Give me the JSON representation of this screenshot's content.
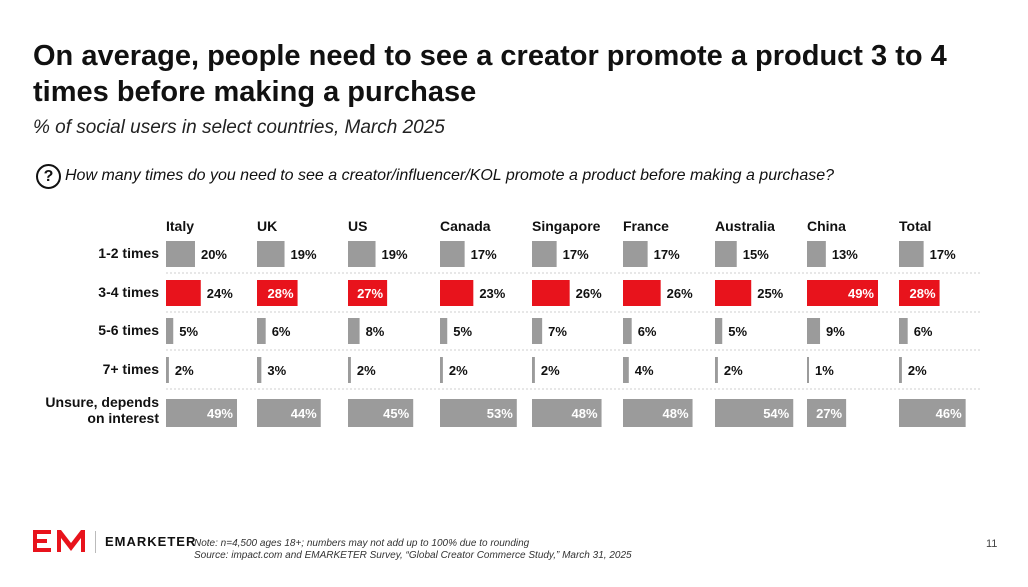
{
  "title": "On average, people need to see a creator promote a product 3 to 4 times before making a purchase",
  "subtitle": "% of social users in select countries, March 2025",
  "question": "How many times do you need to see a creator/influencer/KOL promote a product before making a purchase?",
  "question_icon": "question-circle-icon",
  "colors": {
    "highlight": "#e8131c",
    "default": "#9b9b9b",
    "label_on_bar": "#ffffff"
  },
  "chart_data": {
    "type": "bar",
    "orientation": "horizontal",
    "facet_by": "country",
    "x_max": 49,
    "countries": [
      "Italy",
      "UK",
      "US",
      "Canada",
      "Singapore",
      "France",
      "Australia",
      "China",
      "Total"
    ],
    "categories": [
      "1-2 times",
      "3-4 times",
      "5-6 times",
      "7+ times",
      "Unsure, depends on interest"
    ],
    "highlight_category": "3-4 times",
    "values": [
      [
        20,
        19,
        19,
        17,
        17,
        17,
        15,
        13,
        17
      ],
      [
        24,
        28,
        27,
        23,
        26,
        26,
        25,
        49,
        28
      ],
      [
        5,
        6,
        8,
        5,
        7,
        6,
        5,
        9,
        6
      ],
      [
        2,
        3,
        2,
        2,
        2,
        4,
        2,
        1,
        2
      ],
      [
        49,
        44,
        45,
        53,
        48,
        48,
        54,
        27,
        46
      ]
    ],
    "labels": [
      [
        "20%",
        "19%",
        "19%",
        "17%",
        "17%",
        "17%",
        "15%",
        "13%",
        "17%"
      ],
      [
        "24%",
        "28%",
        "27%",
        "23%",
        "26%",
        "26%",
        "25%",
        "49%",
        "28%"
      ],
      [
        "5%",
        "6%",
        "8%",
        "5%",
        "7%",
        "6%",
        "5%",
        "9%",
        "6%"
      ],
      [
        "2%",
        "3%",
        "2%",
        "2%",
        "2%",
        "4%",
        "2%",
        "1%",
        "2%"
      ],
      [
        "49%",
        "44%",
        "45%",
        "53%",
        "48%",
        "48%",
        "54%",
        "27%",
        "46%"
      ]
    ]
  },
  "footer": {
    "note": "Note: n=4,500 ages 18+; numbers may not add up to 100% due to rounding",
    "source": "Source: impact.com and EMARKETER Survey, “Global Creator Commerce Study,” March 31, 2025"
  },
  "logo": {
    "text": "EMARKETER",
    "mark": "EM"
  },
  "page_number": "11"
}
